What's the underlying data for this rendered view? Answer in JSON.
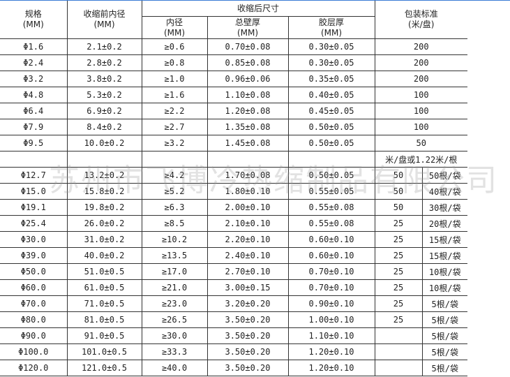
{
  "header": {
    "spec": "规格",
    "spec_unit": "(MM)",
    "pre_id": "收缩前内径",
    "pre_id_unit": "(MM)",
    "post": "收缩后尺寸",
    "post_id": "内径",
    "post_id_unit": "(MM)",
    "wall": "总壁厚",
    "wall_unit": "(MM)",
    "glue": "胶层厚",
    "glue_unit": "(MM)",
    "pack": "包装标准",
    "pack_unit": "(米/盘)"
  },
  "rows_a": [
    [
      "Φ1.6",
      "2.1±0.2",
      "≥0.6",
      "0.70±0.08",
      "0.30±0.05",
      "200"
    ],
    [
      "Φ2.4",
      "2.8±0.2",
      "≥0.8",
      "0.85±0.08",
      "0.30±0.05",
      "200"
    ],
    [
      "Φ3.2",
      "3.8±0.2",
      "≥1.0",
      "0.96±0.06",
      "0.35±0.05",
      "200"
    ],
    [
      "Φ4.8",
      "5.3±0.2",
      "≥1.6",
      "1.10±0.08",
      "0.40±0.05",
      "100"
    ],
    [
      "Φ6.4",
      "6.9±0.2",
      "≥2.2",
      "1.20±0.08",
      "0.45±0.05",
      "100"
    ],
    [
      "Φ7.9",
      "8.4±0.2",
      "≥2.7",
      "1.35±0.08",
      "0.50±0.05",
      "100"
    ],
    [
      "Φ9.5",
      "10.0±0.2",
      "≥3.2",
      "1.45±0.08",
      "0.50±0.05",
      "50"
    ]
  ],
  "pack_note": "米/盘或1.22米/根",
  "rows_b": [
    [
      "Φ12.7",
      "13.2±0.2",
      "≥4.2",
      "1.70±0.08",
      "0.50±0.05",
      "50",
      "50根/袋"
    ],
    [
      "Φ15.0",
      "15.8±0.2",
      "≥5.2",
      "1.80±0.10",
      "0.55±0.05",
      "50",
      "40根/袋"
    ],
    [
      "Φ19.1",
      "19.8±0.2",
      "≥6.3",
      "2.00±0.10",
      "0.55±0.08",
      "50",
      "30根/袋"
    ],
    [
      "Φ25.4",
      "26.0±0.2",
      "≥8.5",
      "2.10±0.10",
      "0.55±0.08",
      "25",
      "20根/袋"
    ],
    [
      "Φ30.0",
      "31.0±0.2",
      "≥10.2",
      "2.20±0.10",
      "0.60±0.10",
      "25",
      "15根/袋"
    ],
    [
      "Φ39.0",
      "40.0±0.2",
      "≥13.5",
      "2.40±0.10",
      "0.60±0.10",
      "25",
      "15根/袋"
    ],
    [
      "Φ50.0",
      "51.0±0.5",
      "≥17.0",
      "2.70±0.10",
      "0.70±0.10",
      "25",
      "10根/袋"
    ],
    [
      "Φ60.0",
      "61.0±0.5",
      "≥21.0",
      "3.00±0.15",
      "0.70±0.10",
      "25",
      "10根/袋"
    ],
    [
      "Φ70.0",
      "71.0±0.5",
      "≥23.0",
      "3.20±0.20",
      "0.90±0.10",
      "25",
      "5根/袋"
    ],
    [
      "Φ80.0",
      "81.0±0.5",
      "≥26.5",
      "3.50±0.20",
      "1.00±0.10",
      "25",
      "5根/袋"
    ],
    [
      "Φ90.0",
      "91.0±0.5",
      "≥30.0",
      "3.50±0.20",
      "1.10±0.10",
      "",
      "5根/袋"
    ],
    [
      "Φ100.0",
      "101.0±0.5",
      "≥33.3",
      "3.50±0.20",
      "1.20±0.10",
      "",
      "5根/袋"
    ],
    [
      "Φ120.0",
      "121.0±0.5",
      "≥40.0",
      "3.50±0.20",
      "1.20±0.10",
      "",
      "5根/袋"
    ]
  ],
  "watermark": "苏州市飞博冷热缩制品有限公司"
}
